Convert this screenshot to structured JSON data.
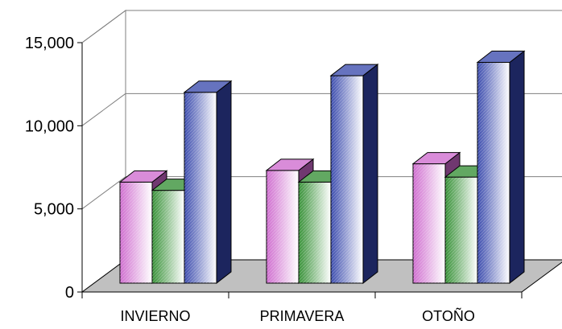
{
  "chart_data": {
    "type": "bar",
    "categories": [
      "INVIERNO",
      "PRIMAVERA",
      "OTOÑO"
    ],
    "series": [
      {
        "values": [
          5800,
          6500,
          6900
        ],
        "color": "#cc66cc"
      },
      {
        "values": [
          5300,
          5800,
          6100
        ],
        "color": "#2e8b2e"
      },
      {
        "values": [
          11200,
          12200,
          13000
        ],
        "color": "#3344aa"
      }
    ],
    "ylim": [
      0,
      15000
    ],
    "yticks": [
      "0",
      "5,000",
      "10,000",
      "15,000"
    ],
    "grid": true,
    "three_d": true,
    "legend": "none"
  }
}
